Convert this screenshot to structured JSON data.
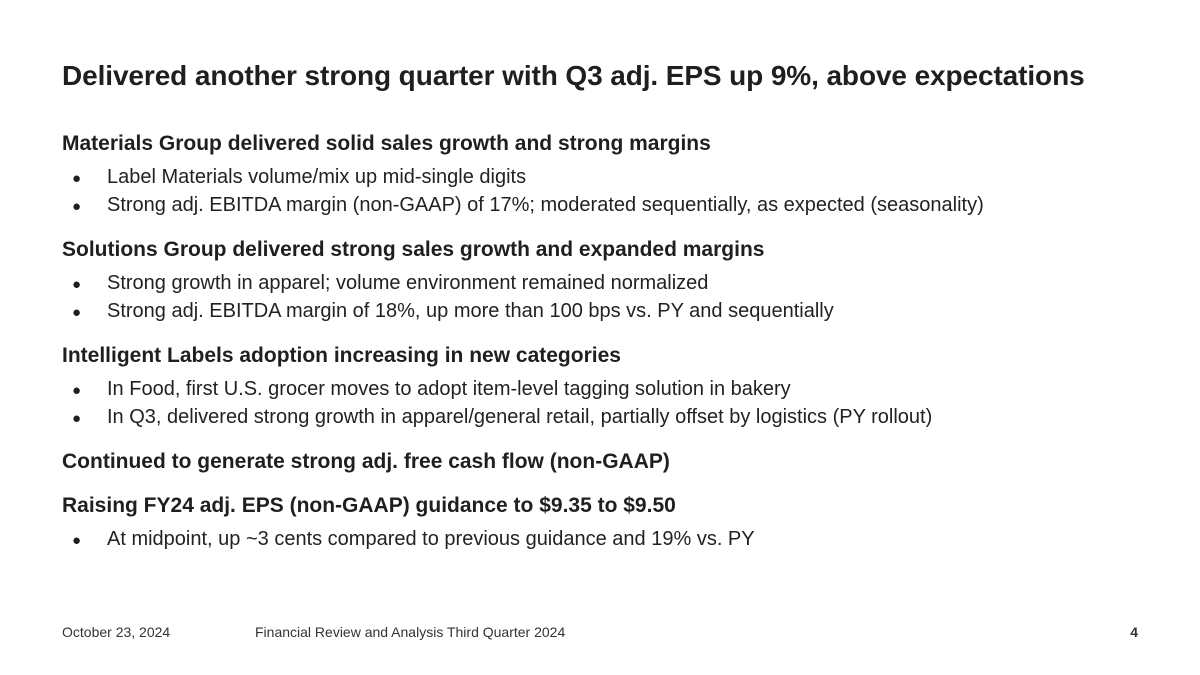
{
  "slide": {
    "title": "Delivered another strong quarter with Q3 adj. EPS up 9%, above expectations",
    "bullet_glyph": "●",
    "sections": [
      {
        "heading": "Materials Group delivered solid sales growth and strong margins",
        "bullets": [
          "Label Materials volume/mix up mid-single digits",
          "Strong adj. EBITDA margin (non-GAAP) of 17%; moderated sequentially, as expected (seasonality)"
        ]
      },
      {
        "heading": "Solutions Group delivered strong sales growth and expanded margins",
        "bullets": [
          "Strong growth in apparel; volume environment remained normalized",
          "Strong adj. EBITDA margin of 18%, up more than 100 bps vs. PY and sequentially"
        ]
      },
      {
        "heading": "Intelligent Labels adoption increasing in new categories",
        "bullets": [
          "In Food, first U.S. grocer moves to adopt item-level tagging solution in bakery",
          "In Q3, delivered strong growth in apparel/general retail, partially offset by logistics (PY rollout)"
        ]
      },
      {
        "heading": "Continued to generate strong adj. free cash flow (non-GAAP)",
        "bullets": []
      },
      {
        "heading": "Raising FY24 adj. EPS (non-GAAP) guidance to $9.35 to $9.50",
        "bullets": [
          "At midpoint, up ~3 cents compared to previous guidance and 19% vs. PY"
        ]
      }
    ]
  },
  "footer": {
    "date": "October 23, 2024",
    "document_title": "Financial Review and Analysis Third Quarter 2024",
    "page_number": "4"
  }
}
